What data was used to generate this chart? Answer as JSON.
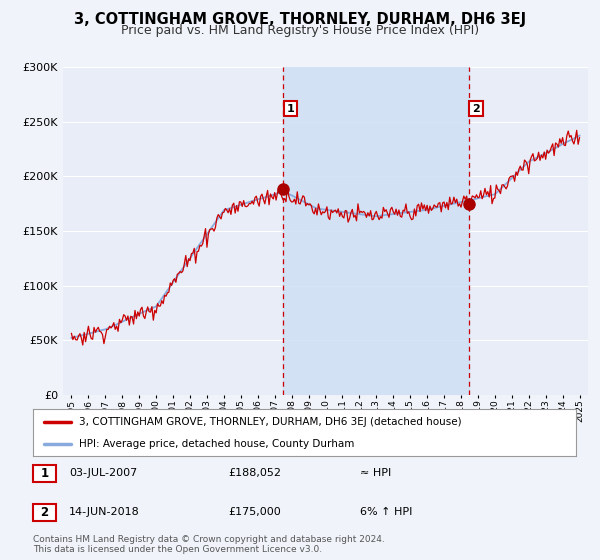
{
  "title": "3, COTTINGHAM GROVE, THORNLEY, DURHAM, DH6 3EJ",
  "subtitle": "Price paid vs. HM Land Registry's House Price Index (HPI)",
  "title_fontsize": 10.5,
  "subtitle_fontsize": 9,
  "ylim": [
    0,
    300000
  ],
  "yticks": [
    0,
    50000,
    100000,
    150000,
    200000,
    250000,
    300000
  ],
  "ytick_labels": [
    "£0",
    "£50K",
    "£100K",
    "£150K",
    "£200K",
    "£250K",
    "£300K"
  ],
  "background_color": "#f0f4fa",
  "plot_bg_color": "#e8edf8",
  "grid_color": "#ffffff",
  "sale1_year": 2007.5,
  "sale1_price": 188052,
  "sale2_year": 2018.45,
  "sale2_price": 175000,
  "sale1_label": "03-JUL-2007",
  "sale1_price_str": "£188,052",
  "sale1_hpi_str": "≈ HPI",
  "sale2_label": "14-JUN-2018",
  "sale2_price_str": "£175,000",
  "sale2_hpi_str": "6% ↑ HPI",
  "legend_line1": "3, COTTINGHAM GROVE, THORNLEY, DURHAM, DH6 3EJ (detached house)",
  "legend_line2": "HPI: Average price, detached house, County Durham",
  "footer": "Contains HM Land Registry data © Crown copyright and database right 2024.\nThis data is licensed under the Open Government Licence v3.0.",
  "line_color_red": "#cc0000",
  "line_color_blue": "#88aadd",
  "shading_blue": "#d0e0f5",
  "marker_color": "#aa0000",
  "xmin": 1995,
  "xmax": 2025
}
